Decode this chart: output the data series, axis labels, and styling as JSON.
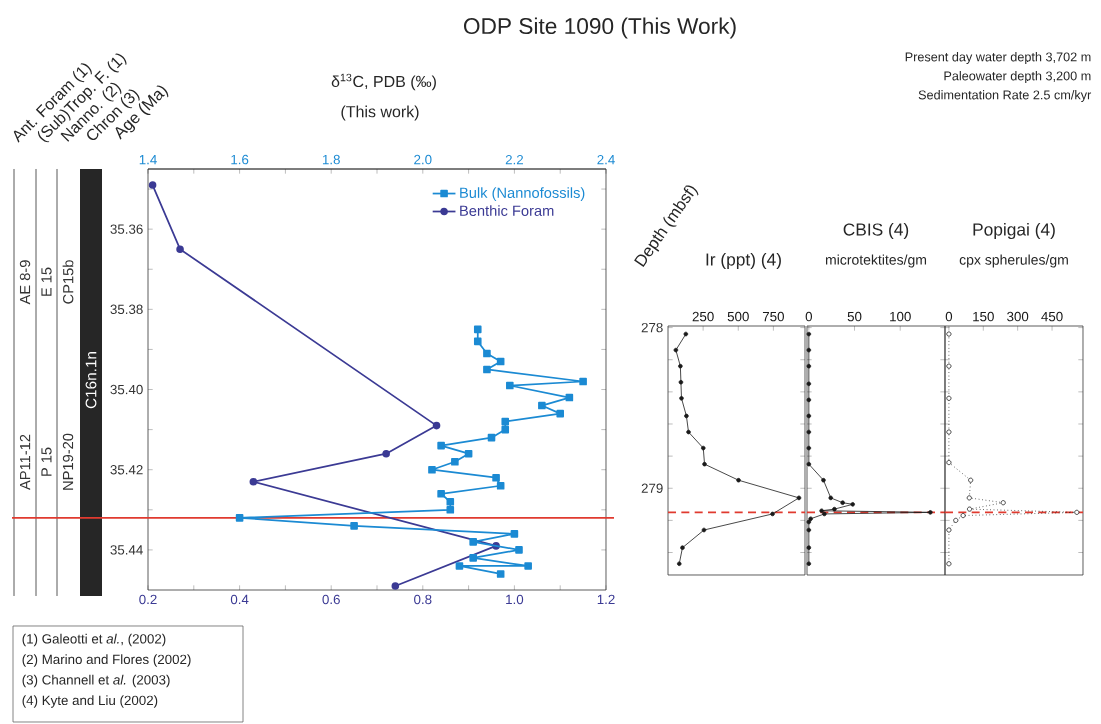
{
  "chart_data": [
    {
      "type": "other",
      "categories": [
        "Ant. Foram (1)",
        "(Sub)Trop. F. (1)",
        "Nanno. (2)",
        "Chron (3)"
      ],
      "annotations": [
        "AE 8-9",
        "AP11-12",
        "E 15",
        "P 15",
        "CP15b",
        "NP19-20",
        "C16n.1n"
      ]
    },
    {
      "type": "line",
      "title": "ODP Site 1090 (This Work)",
      "x2label": "δ$^{13}$C, PDB (‰)",
      "ylabel": "Age (Ma)",
      "xlim": [
        0.2,
        1.2
      ],
      "xticks": [
        0.2,
        {
          "value": 0.3,
          "label": null
        },
        0.4,
        {
          "value": 0.5,
          "label": null
        },
        0.6,
        {
          "value": 0.7,
          "label": null
        },
        0.8,
        {
          "value": 0.9,
          "label": null
        },
        {
          "value": 1.0,
          "label": "1.0"
        },
        {
          "value": 1.1,
          "label": null
        },
        1.2
      ],
      "x2lim": [
        1.4,
        2.4
      ],
      "x2ticks": [
        1.4,
        {
          "value": 1.5,
          "label": null
        },
        1.6,
        {
          "value": 1.7,
          "label": null
        },
        1.8,
        {
          "value": 1.9,
          "label": null
        },
        {
          "value": 2.0,
          "label": "2.0"
        },
        {
          "value": 2.1,
          "label": null
        },
        2.2,
        {
          "value": 2.3,
          "label": null
        },
        2.4
      ],
      "ylim": [
        35.45,
        35.345
      ],
      "yticks": [
        {
          "value": 35.35,
          "label": null
        },
        35.36,
        {
          "value": 35.37,
          "label": null
        },
        35.38,
        {
          "value": 35.39,
          "label": null
        },
        {
          "value": 35.4,
          "label": "35.40"
        },
        {
          "value": 35.41,
          "label": null
        },
        35.42,
        {
          "value": 35.43,
          "label": null
        },
        35.44
      ],
      "legend": "top right",
      "ref_lines": [
        {
          "axis": "y",
          "value": 35.432,
          "color": "#e03a2f"
        }
      ],
      "annotations": [
        "(This work)",
        "Present day water depth 3,702 m",
        "Paleowater depth 3,200 m",
        "Sedimentation Rate 2.5 cm/kyr",
        "(1) Galeotti et *al.*, (2002)",
        "(2) Marino and Flores (2002)",
        "(3) Channell et *al.* (2003)",
        "(4) Kyte and Liu (2002)"
      ],
      "series": [
        {
          "name": "Bulk (Nannofossils)",
          "color": "#1b8ad3",
          "axis": "x2",
          "marker": "square",
          "x": [
            2.12,
            2.12,
            2.14,
            2.17,
            2.14,
            2.35,
            2.19,
            2.32,
            2.26,
            2.3,
            2.18,
            2.18,
            2.15,
            2.04,
            2.1,
            2.07,
            2.02,
            2.16,
            2.17,
            2.04,
            2.06,
            2.06,
            1.6,
            1.85,
            2.2,
            2.11,
            2.21,
            2.11,
            2.23,
            2.08,
            2.17
          ],
          "values": [
            35.385,
            35.388,
            35.391,
            35.393,
            35.395,
            35.398,
            35.399,
            35.402,
            35.404,
            35.406,
            35.408,
            35.41,
            35.412,
            35.414,
            35.416,
            35.418,
            35.42,
            35.422,
            35.424,
            35.426,
            35.428,
            35.43,
            35.432,
            35.434,
            35.436,
            35.438,
            35.44,
            35.442,
            35.444,
            35.444,
            35.446
          ]
        },
        {
          "name": "Benthic Foram",
          "color": "#3b3a94",
          "marker": "circle",
          "x": [
            0.21,
            0.27,
            0.83,
            0.72,
            0.43,
            0.96,
            0.74
          ],
          "values": [
            35.349,
            35.365,
            35.409,
            35.416,
            35.423,
            35.439,
            35.449
          ]
        }
      ]
    },
    {
      "type": "line",
      "title": "Ir (ppt) (4)",
      "ylabel": "Depth (mbsf)",
      "xlim": [
        0,
        975
      ],
      "xticks": [
        250,
        500,
        750
      ],
      "ylim": [
        279.54,
        277.99
      ],
      "yticks": [
        278,
        {
          "value": 278.2,
          "label": null
        },
        {
          "value": 278.4,
          "label": null
        },
        {
          "value": 278.6,
          "label": null
        },
        {
          "value": 278.8,
          "label": null
        },
        279,
        {
          "value": 279.2,
          "label": null
        },
        {
          "value": 279.4,
          "label": null
        }
      ],
      "ref_lines": [
        {
          "axis": "y",
          "value": 279.15,
          "color": "#e03a2f",
          "line_style": "dashed"
        }
      ],
      "series": [
        {
          "color": "#1a1a1a",
          "marker": "circle",
          "line_style": "solid",
          "x": [
            127,
            56,
            88,
            92,
            96,
            131,
            146,
            251,
            260,
            502,
            932,
            744,
            256,
            103,
            80
          ],
          "values": [
            278.04,
            278.14,
            278.24,
            278.34,
            278.44,
            278.55,
            278.65,
            278.75,
            278.85,
            278.95,
            279.06,
            279.16,
            279.26,
            279.37,
            279.47
          ]
        }
      ]
    },
    {
      "type": "line",
      "title": "CBIS (4)",
      "subtitle": "microtektites/gm",
      "tick_labels": "x",
      "xlim": [
        -2,
        149
      ],
      "xticks": [
        0,
        50,
        100
      ],
      "ylim": [
        279.54,
        277.99
      ],
      "yticks": [
        278,
        {
          "value": 278.2,
          "label": null
        },
        {
          "value": 278.4,
          "label": null
        },
        {
          "value": 278.6,
          "label": null
        },
        {
          "value": 278.8,
          "label": null
        },
        279,
        {
          "value": 279.2,
          "label": null
        },
        {
          "value": 279.4,
          "label": null
        }
      ],
      "ref_lines": [
        {
          "axis": "y",
          "value": 279.15,
          "color": "#e03a2f",
          "line_style": "dashed"
        }
      ],
      "series": [
        {
          "color": "#1a1a1a",
          "marker": "circle",
          "line_style": "solid",
          "x": [
            0,
            0,
            0,
            0,
            0,
            0,
            0,
            0,
            0,
            16,
            24,
            37,
            48,
            28,
            14,
            133,
            17,
            2,
            0,
            0,
            0,
            0
          ],
          "values": [
            278.04,
            278.14,
            278.24,
            278.35,
            278.45,
            278.55,
            278.65,
            278.75,
            278.85,
            278.95,
            279.06,
            279.09,
            279.1,
            279.13,
            279.14,
            279.15,
            279.16,
            279.19,
            279.21,
            279.26,
            279.37,
            279.47
          ]
        }
      ]
    },
    {
      "type": "line",
      "title": "Popigai (4)",
      "subtitle": "cpx spherules/gm",
      "tick_labels": "x",
      "xlim": [
        -17,
        585
      ],
      "xticks": [
        0,
        150,
        300,
        450
      ],
      "ylim": [
        279.54,
        277.99
      ],
      "yticks": [
        278,
        {
          "value": 278.2,
          "label": null
        },
        {
          "value": 278.4,
          "label": null
        },
        {
          "value": 278.6,
          "label": null
        },
        {
          "value": 278.8,
          "label": null
        },
        279,
        {
          "value": 279.2,
          "label": null
        },
        {
          "value": 279.4,
          "label": null
        }
      ],
      "ref_lines": [
        {
          "axis": "y",
          "value": 279.15,
          "color": "#e03a2f",
          "line_style": "dashed"
        }
      ],
      "series": [
        {
          "color": "#1a1a1a",
          "marker": "circle",
          "line_style": "dotted",
          "x": [
            0,
            0,
            0,
            0,
            0,
            95,
            89,
            237,
            90,
            558,
            62,
            30,
            0,
            0
          ],
          "values": [
            278.04,
            278.24,
            278.44,
            278.65,
            278.84,
            278.95,
            279.06,
            279.09,
            279.13,
            279.15,
            279.17,
            279.2,
            279.26,
            279.47
          ]
        }
      ]
    }
  ]
}
